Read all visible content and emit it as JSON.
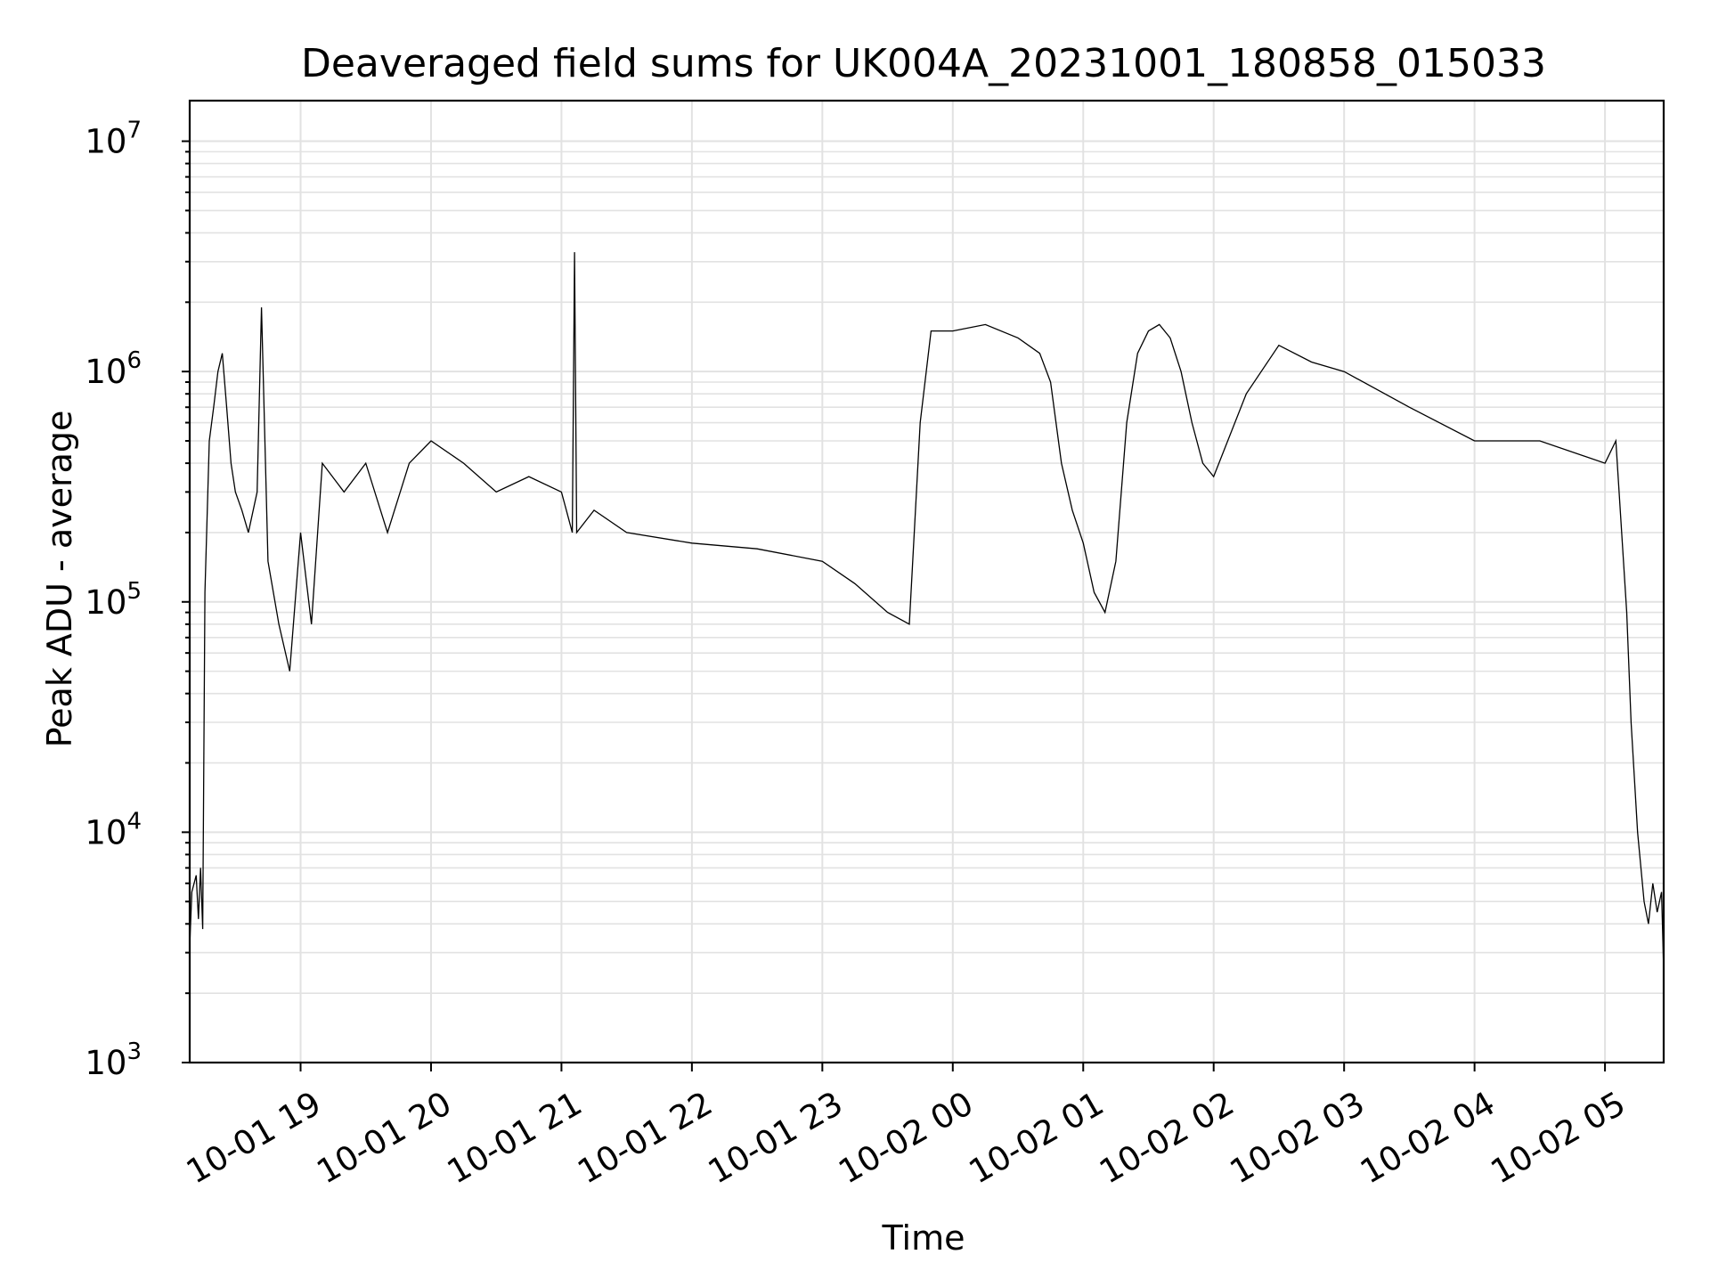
{
  "chart_data": {
    "type": "line",
    "title": "Deaveraged field sums for UK004A_20231001_180858_015033",
    "xlabel": "Time",
    "ylabel": "Peak ADU - average",
    "y_scale": "log",
    "ylim": [
      1000,
      15000000
    ],
    "xlim": [
      "2023-10-01 18:09",
      "2023-10-02 05:27"
    ],
    "grid": true,
    "y_ticks": [
      {
        "value": 1000,
        "base": "10",
        "exp": "3"
      },
      {
        "value": 10000,
        "base": "10",
        "exp": "4"
      },
      {
        "value": 100000,
        "base": "10",
        "exp": "5"
      },
      {
        "value": 1000000,
        "base": "10",
        "exp": "6"
      },
      {
        "value": 10000000,
        "base": "10",
        "exp": "7"
      }
    ],
    "x_ticks": [
      {
        "value": "2023-10-01 19:00",
        "label": "10-01 19"
      },
      {
        "value": "2023-10-01 20:00",
        "label": "10-01 20"
      },
      {
        "value": "2023-10-01 21:00",
        "label": "10-01 21"
      },
      {
        "value": "2023-10-01 22:00",
        "label": "10-01 22"
      },
      {
        "value": "2023-10-01 23:00",
        "label": "10-01 23"
      },
      {
        "value": "2023-10-02 00:00",
        "label": "10-02 00"
      },
      {
        "value": "2023-10-02 01:00",
        "label": "10-02 01"
      },
      {
        "value": "2023-10-02 02:00",
        "label": "10-02 02"
      },
      {
        "value": "2023-10-02 03:00",
        "label": "10-02 03"
      },
      {
        "value": "2023-10-02 04:00",
        "label": "10-02 04"
      },
      {
        "value": "2023-10-02 05:00",
        "label": "10-02 05"
      }
    ],
    "series": [
      {
        "color": "#000000",
        "points": [
          [
            "2023-10-01 18:09",
            3200
          ],
          [
            "2023-10-01 18:10",
            5500
          ],
          [
            "2023-10-01 18:12",
            6500
          ],
          [
            "2023-10-01 18:13",
            4200
          ],
          [
            "2023-10-01 18:14",
            7000
          ],
          [
            "2023-10-01 18:15",
            3800
          ],
          [
            "2023-10-01 18:16",
            110000
          ],
          [
            "2023-10-01 18:18",
            500000
          ],
          [
            "2023-10-01 18:20",
            700000
          ],
          [
            "2023-10-01 18:22",
            1000000
          ],
          [
            "2023-10-01 18:24",
            1200000
          ],
          [
            "2023-10-01 18:26",
            700000
          ],
          [
            "2023-10-01 18:28",
            400000
          ],
          [
            "2023-10-01 18:30",
            300000
          ],
          [
            "2023-10-01 18:33",
            250000
          ],
          [
            "2023-10-01 18:36",
            200000
          ],
          [
            "2023-10-01 18:40",
            300000
          ],
          [
            "2023-10-01 18:42",
            1900000
          ],
          [
            "2023-10-01 18:45",
            150000
          ],
          [
            "2023-10-01 18:50",
            80000
          ],
          [
            "2023-10-01 18:55",
            50000
          ],
          [
            "2023-10-01 19:00",
            200000
          ],
          [
            "2023-10-01 19:05",
            80000
          ],
          [
            "2023-10-01 19:10",
            400000
          ],
          [
            "2023-10-01 19:20",
            300000
          ],
          [
            "2023-10-01 19:30",
            400000
          ],
          [
            "2023-10-01 19:40",
            200000
          ],
          [
            "2023-10-01 19:50",
            400000
          ],
          [
            "2023-10-01 20:00",
            500000
          ],
          [
            "2023-10-01 20:15",
            400000
          ],
          [
            "2023-10-01 20:30",
            300000
          ],
          [
            "2023-10-01 20:45",
            350000
          ],
          [
            "2023-10-01 21:00",
            300000
          ],
          [
            "2023-10-01 21:05",
            200000
          ],
          [
            "2023-10-01 21:06",
            3300000
          ],
          [
            "2023-10-01 21:07",
            200000
          ],
          [
            "2023-10-01 21:15",
            250000
          ],
          [
            "2023-10-01 21:30",
            200000
          ],
          [
            "2023-10-01 22:00",
            180000
          ],
          [
            "2023-10-01 22:30",
            170000
          ],
          [
            "2023-10-01 23:00",
            150000
          ],
          [
            "2023-10-01 23:15",
            120000
          ],
          [
            "2023-10-01 23:30",
            90000
          ],
          [
            "2023-10-01 23:40",
            80000
          ],
          [
            "2023-10-01 23:45",
            600000
          ],
          [
            "2023-10-01 23:50",
            1500000
          ],
          [
            "2023-10-02 00:00",
            1500000
          ],
          [
            "2023-10-02 00:15",
            1600000
          ],
          [
            "2023-10-02 00:30",
            1400000
          ],
          [
            "2023-10-02 00:40",
            1200000
          ],
          [
            "2023-10-02 00:45",
            900000
          ],
          [
            "2023-10-02 00:50",
            400000
          ],
          [
            "2023-10-02 00:55",
            250000
          ],
          [
            "2023-10-02 01:00",
            180000
          ],
          [
            "2023-10-02 01:05",
            110000
          ],
          [
            "2023-10-02 01:10",
            90000
          ],
          [
            "2023-10-02 01:15",
            150000
          ],
          [
            "2023-10-02 01:20",
            600000
          ],
          [
            "2023-10-02 01:25",
            1200000
          ],
          [
            "2023-10-02 01:30",
            1500000
          ],
          [
            "2023-10-02 01:35",
            1600000
          ],
          [
            "2023-10-02 01:40",
            1400000
          ],
          [
            "2023-10-02 01:45",
            1000000
          ],
          [
            "2023-10-02 01:50",
            600000
          ],
          [
            "2023-10-02 01:55",
            400000
          ],
          [
            "2023-10-02 02:00",
            350000
          ],
          [
            "2023-10-02 02:15",
            800000
          ],
          [
            "2023-10-02 02:30",
            1300000
          ],
          [
            "2023-10-02 02:45",
            1100000
          ],
          [
            "2023-10-02 03:00",
            1000000
          ],
          [
            "2023-10-02 03:30",
            700000
          ],
          [
            "2023-10-02 04:00",
            500000
          ],
          [
            "2023-10-02 04:30",
            500000
          ],
          [
            "2023-10-02 05:00",
            400000
          ],
          [
            "2023-10-02 05:05",
            500000
          ],
          [
            "2023-10-02 05:10",
            90000
          ],
          [
            "2023-10-02 05:12",
            30000
          ],
          [
            "2023-10-02 05:15",
            10000
          ],
          [
            "2023-10-02 05:18",
            5000
          ],
          [
            "2023-10-02 05:20",
            4000
          ],
          [
            "2023-10-02 05:22",
            6000
          ],
          [
            "2023-10-02 05:24",
            4500
          ],
          [
            "2023-10-02 05:26",
            5500
          ],
          [
            "2023-10-02 05:27",
            2500
          ]
        ]
      }
    ]
  }
}
